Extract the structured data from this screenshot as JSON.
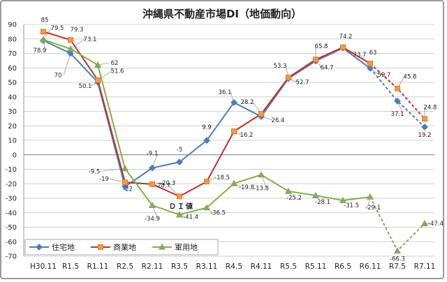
{
  "chart_data": {
    "type": "line",
    "title": "沖縄県不動産市場DI（地価動向）",
    "annotation": "ＤＩ値",
    "ylim": [
      -70,
      90
    ],
    "yticks": [
      "90",
      "80",
      "70",
      "60",
      "50",
      "40",
      "30",
      "20",
      "10",
      "0",
      "-10",
      "-20",
      "-30",
      "-40",
      "-50",
      "-60",
      "-70"
    ],
    "categories": [
      "H30.11",
      "R1.5",
      "R1.11",
      "R2.5",
      "R2.11",
      "R3.5",
      "R3.11",
      "R4.5",
      "R4.11",
      "R5.5",
      "R5.11",
      "R6.5",
      "R6.11",
      "R7.5",
      "R7.11"
    ],
    "grid": true,
    "legend_position": "bottom-left",
    "forecast_from_index": 13,
    "series": [
      {
        "name": "住宅地",
        "color": "#4a7ebb",
        "marker": "diamond",
        "values": [
          78.9,
          70,
          50.1,
          -22,
          -9.1,
          -5,
          9.9,
          36.1,
          26.4,
          52.7,
          64.7,
          73.7,
          59.7,
          37.1,
          19.2
        ],
        "labels": [
          "78.9",
          "70",
          "50.1",
          "-22",
          "-9.1",
          "-5",
          "9.9",
          "36.1",
          "26.4",
          "52.7",
          "64.7",
          "73.7",
          "59.7",
          "37.1",
          "19.2"
        ]
      },
      {
        "name": "商業地",
        "color": "#c0312b",
        "marker": "square",
        "values": [
          85,
          79.3,
          51.6,
          -19,
          -20.3,
          -28.7,
          -18.5,
          16.2,
          28.2,
          53.3,
          65.8,
          74.2,
          63,
          45.8,
          24.8
        ],
        "labels": [
          "85",
          "79.3",
          "51.6",
          "-19",
          "-20.3",
          "-28.7",
          "-18.5",
          "16.2",
          "28.2",
          "53.3",
          "65.8",
          "74.2",
          "63",
          "45.8",
          "24.8"
        ]
      },
      {
        "name": "軍用地",
        "color": "#7fb24a",
        "marker": "triangle",
        "values": [
          79.5,
          73.1,
          62,
          -9.5,
          -34.9,
          -41.4,
          -36.5,
          -19.8,
          -13.8,
          -25.2,
          -28.1,
          -31.5,
          -29.1,
          -66.3,
          -47.4
        ],
        "labels": [
          "79.5",
          "73.1",
          "62",
          "-9.5",
          "-34.9",
          "-41.4",
          "-36.5",
          "-19.8",
          "-13.8",
          "-25.2",
          "-28.1",
          "-31.5",
          "-29.1",
          "-66.3",
          "-47.4"
        ]
      }
    ]
  }
}
